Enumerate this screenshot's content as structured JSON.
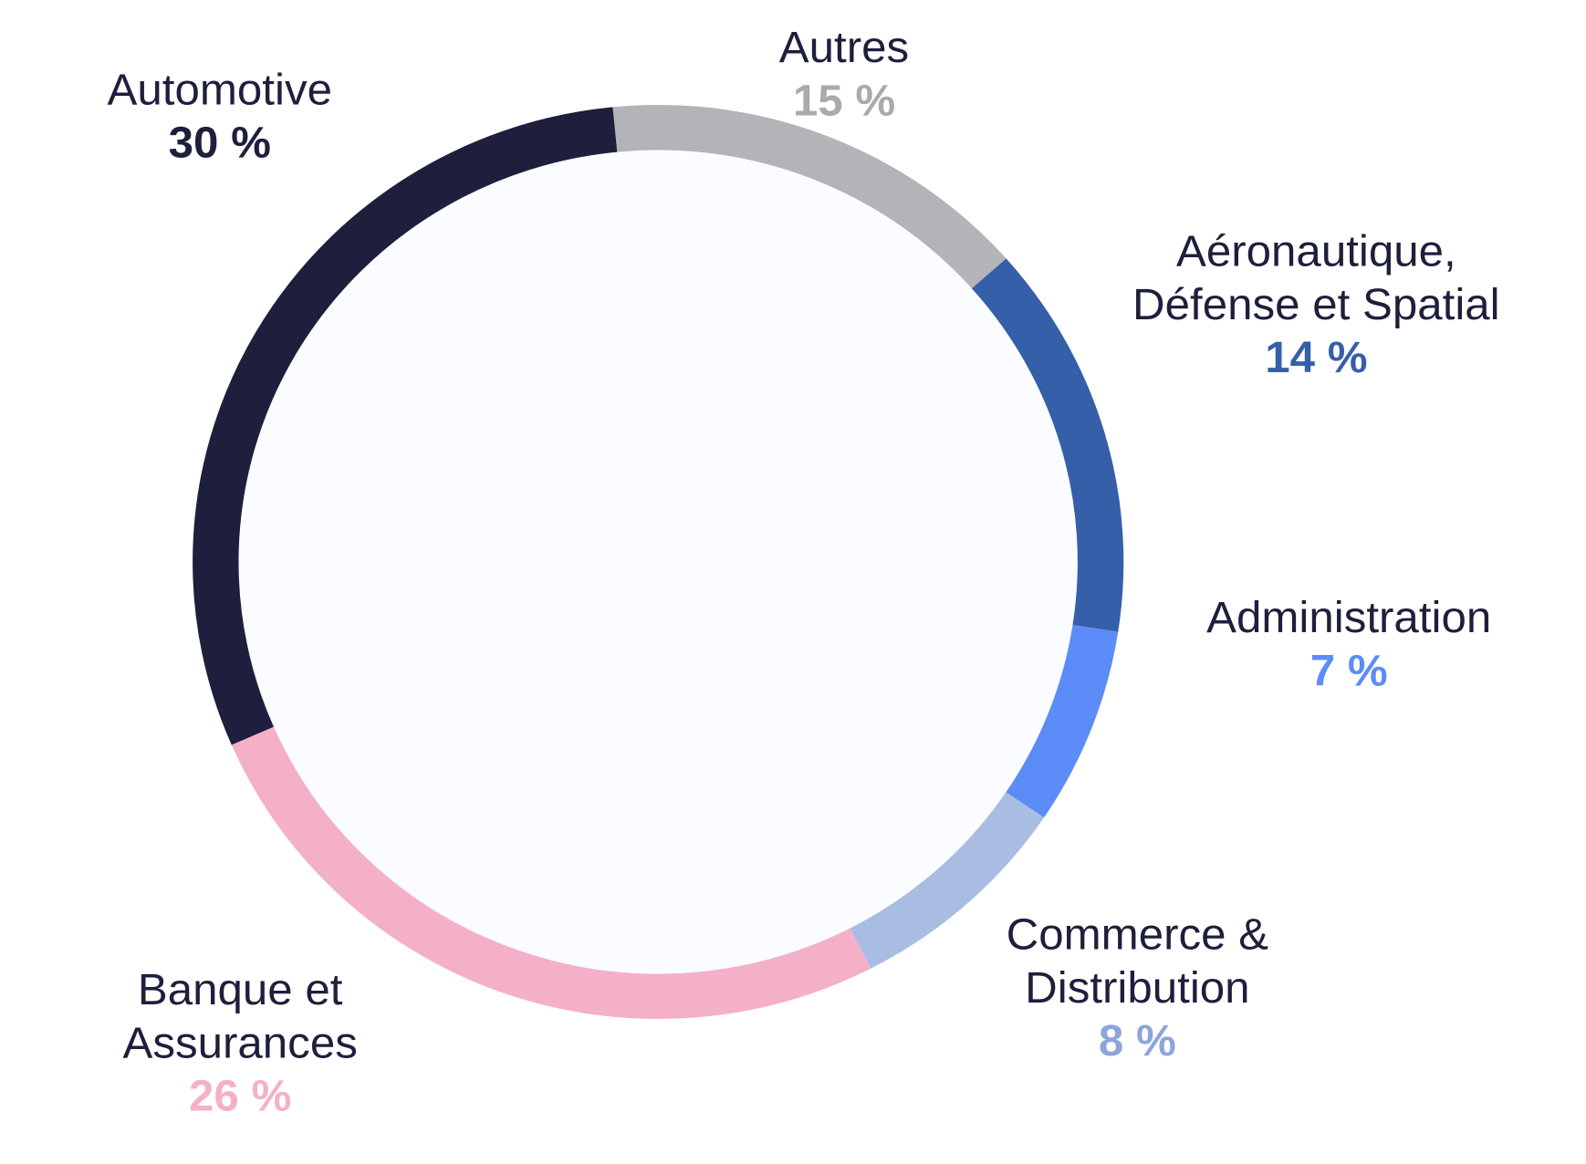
{
  "chart_data": {
    "type": "pie",
    "subtype": "donut",
    "title": "",
    "unit": "%",
    "start_angle_deg": -5.6,
    "direction": "clockwise",
    "slices": [
      {
        "label_lines": [
          "Autres"
        ],
        "value": 15,
        "value_label": "15 %",
        "color": "#b3b3b8",
        "text_color": "#aaaaaa",
        "anchor": "top"
      },
      {
        "label_lines": [
          "Aéronautique,",
          "Défense et Spatial"
        ],
        "value": 14,
        "value_label": "14 %",
        "color": "#365fa9",
        "text_color": "#365fa9",
        "anchor": "top-right"
      },
      {
        "label_lines": [
          "Administration"
        ],
        "value": 7,
        "value_label": "7 %",
        "color": "#5b8cf7",
        "text_color": "#5b8cf7",
        "anchor": "right"
      },
      {
        "label_lines": [
          "Commerce &",
          "Distribution"
        ],
        "value": 8,
        "value_label": "8 %",
        "color": "#a9bde2",
        "text_color": "#8ca6da",
        "anchor": "bottom-right"
      },
      {
        "label_lines": [
          "Banque et",
          "Assurances"
        ],
        "value": 26,
        "value_label": "26 %",
        "color": "#f4b0c8",
        "text_color": "#f4b0c8",
        "anchor": "bottom-left"
      },
      {
        "label_lines": [
          "Automotive"
        ],
        "value": 30,
        "value_label": "30 %",
        "color": "#1e1f3c",
        "text_color": "#1e1f3c",
        "anchor": "top-left"
      }
    ],
    "colors": {
      "center_fill": "#fafcff",
      "label_text": "#1e1f3c"
    }
  }
}
